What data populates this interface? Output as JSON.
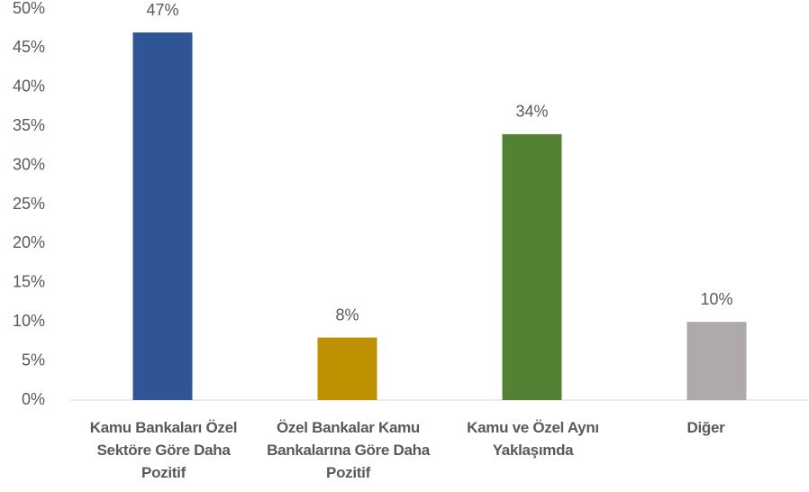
{
  "chart_data": {
    "type": "bar",
    "categories": [
      "Kamu Bankaları Özel Sektöre Göre Daha Pozitif",
      "Özel Bankalar Kamu Bankalarına Göre Daha Pozitif",
      "Kamu ve Özel Aynı Yaklaşımda",
      "Diğer"
    ],
    "values": [
      47,
      8,
      34,
      10
    ],
    "value_labels": [
      "47%",
      "8%",
      "34%",
      "10%"
    ],
    "colors": [
      "#2f5597",
      "#bf9000",
      "#548235",
      "#aeaaaa"
    ],
    "ylim": [
      0,
      50
    ],
    "yticks": [
      {
        "value": 0,
        "label": "0%"
      },
      {
        "value": 5,
        "label": "5%"
      },
      {
        "value": 10,
        "label": "10%"
      },
      {
        "value": 15,
        "label": "15%"
      },
      {
        "value": 20,
        "label": "20%"
      },
      {
        "value": 25,
        "label": "25%"
      },
      {
        "value": 30,
        "label": "30%"
      },
      {
        "value": 35,
        "label": "35%"
      },
      {
        "value": 40,
        "label": "40%"
      },
      {
        "value": 45,
        "label": "45%"
      },
      {
        "value": 50,
        "label": "50%"
      }
    ],
    "grid": false
  }
}
